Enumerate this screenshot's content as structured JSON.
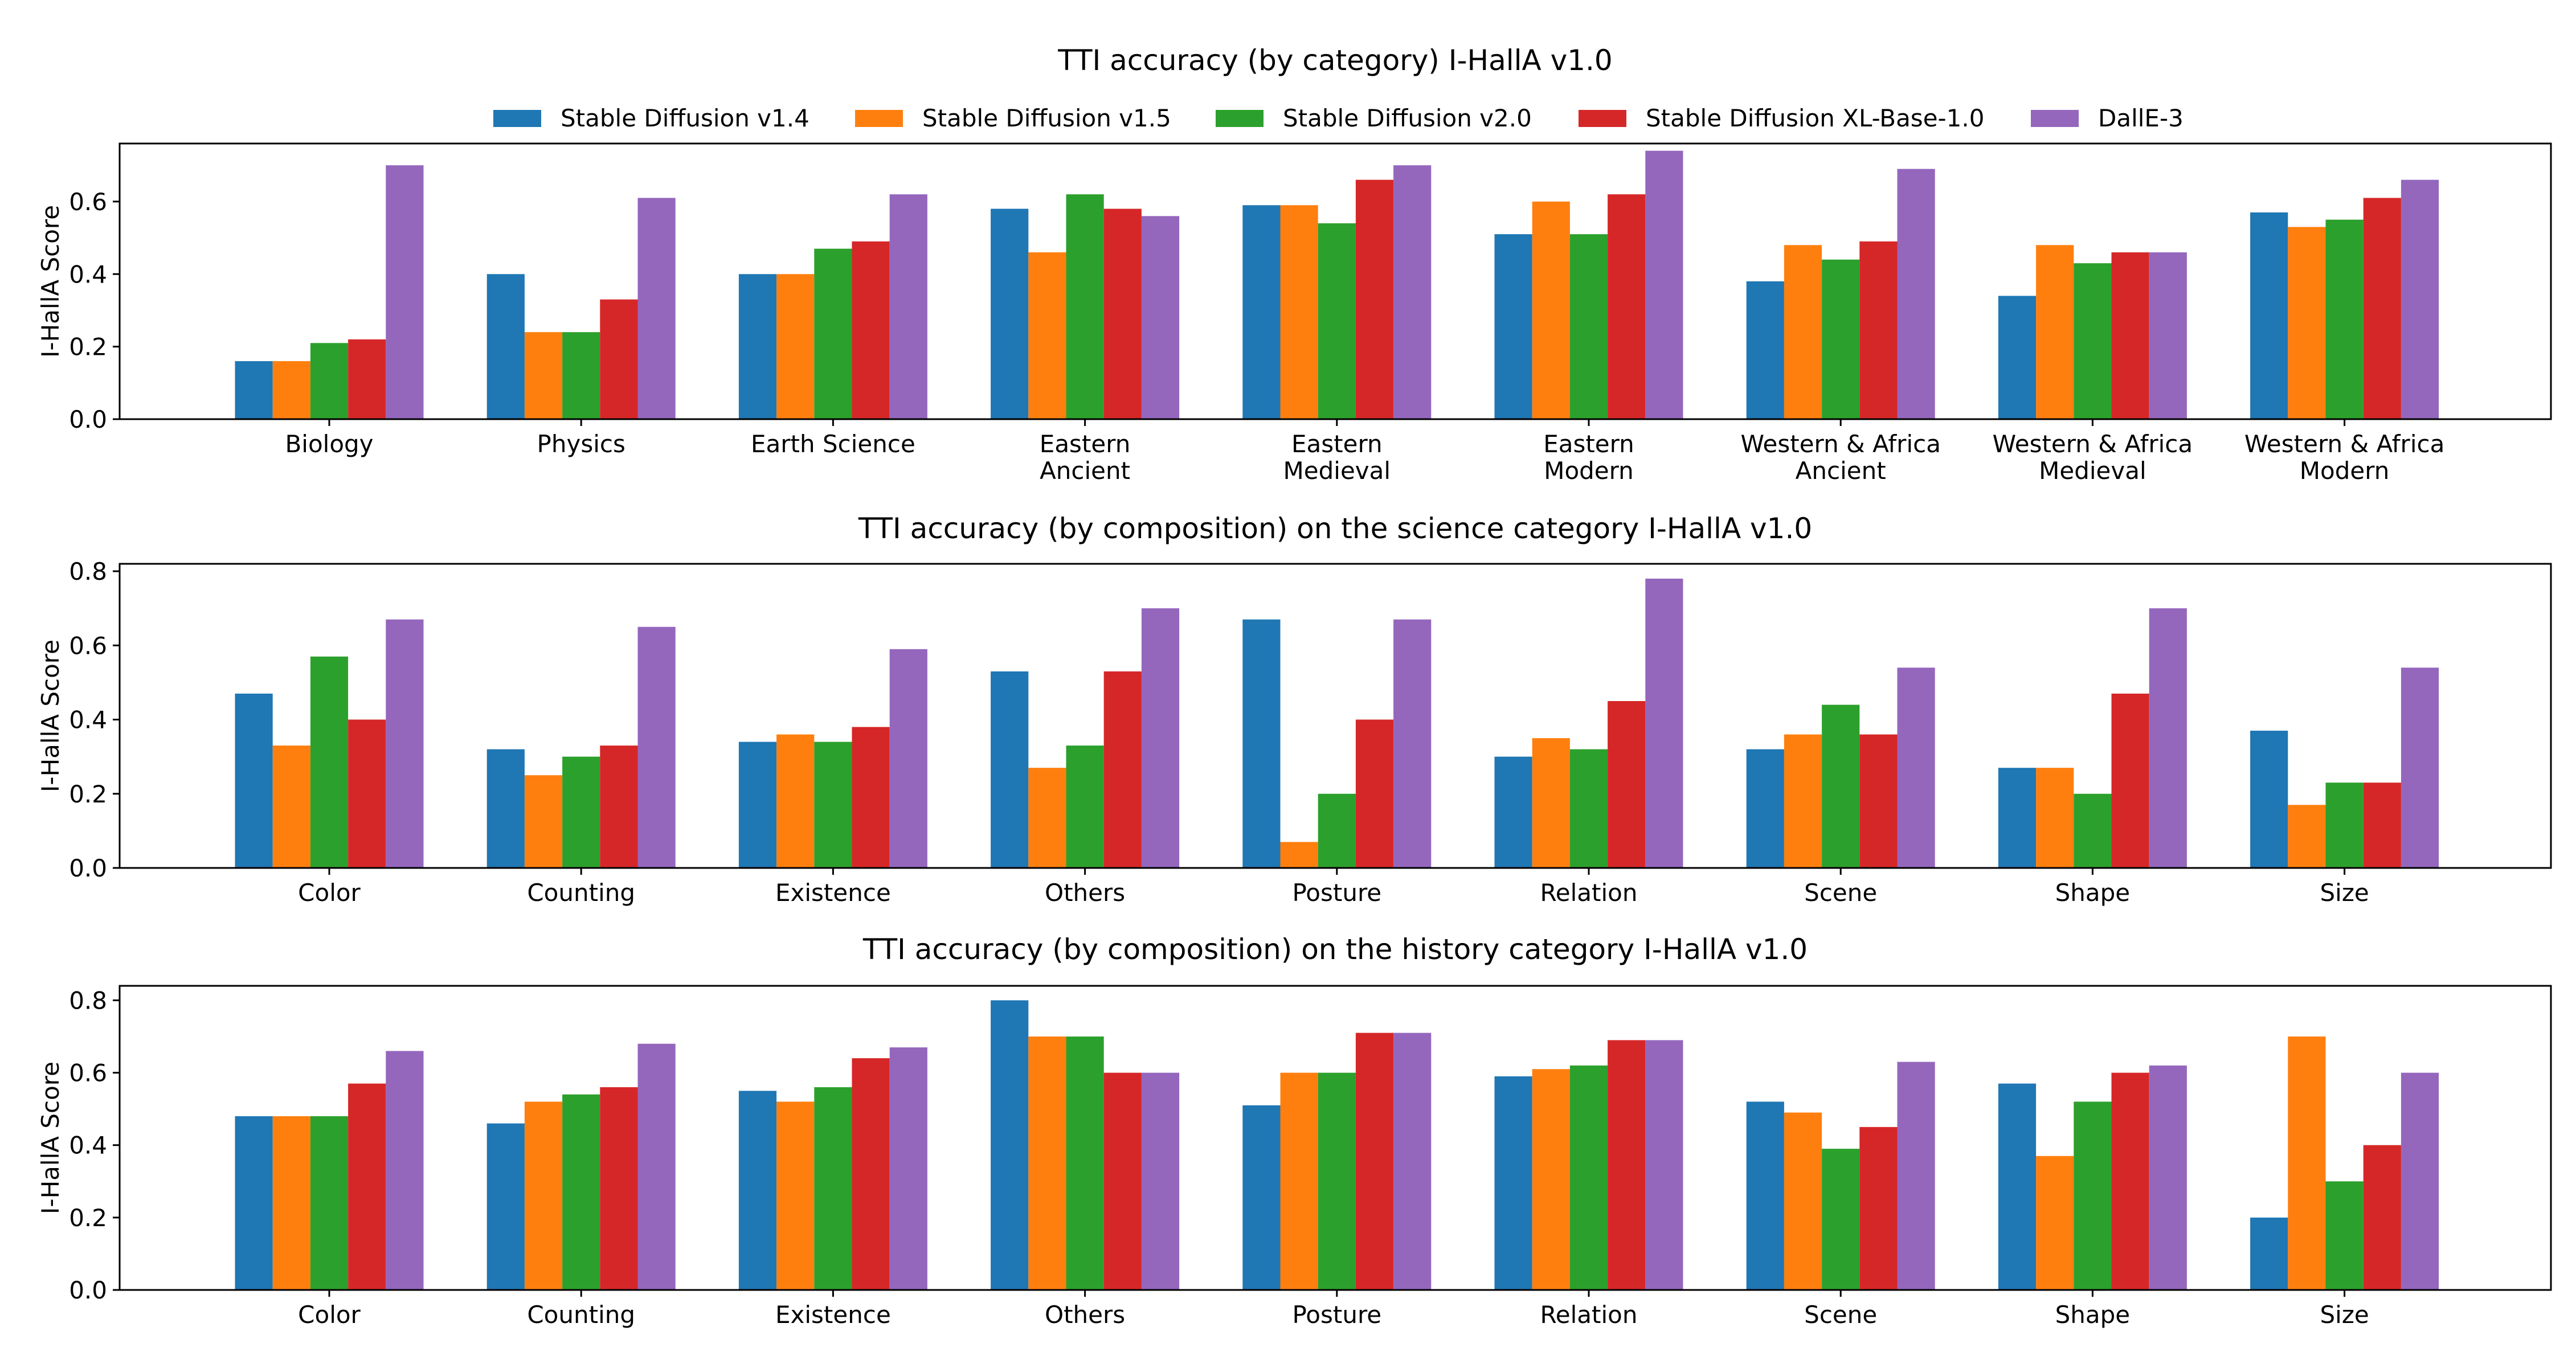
{
  "legend": {
    "items": [
      {
        "label": "Stable Diffusion v1.4",
        "color": "#1f77b4"
      },
      {
        "label": "Stable Diffusion v1.5",
        "color": "#ff7f0e"
      },
      {
        "label": "Stable Diffusion v2.0",
        "color": "#2ca02c"
      },
      {
        "label": "Stable Diffusion XL-Base-1.0",
        "color": "#d62728"
      },
      {
        "label": "DallE-3",
        "color": "#9467bd"
      }
    ]
  },
  "chart_data": [
    {
      "type": "bar",
      "title": "TTI accuracy (by category) I-HallA v1.0",
      "xlabel": "",
      "ylabel": "I-HallA Score",
      "ylim": [
        0,
        0.76
      ],
      "yticks": [
        "0.0",
        "0.2",
        "0.4",
        "0.6"
      ],
      "categories": [
        [
          "Biology"
        ],
        [
          "Physics"
        ],
        [
          "Earth Science"
        ],
        [
          "Eastern",
          "Ancient"
        ],
        [
          "Eastern",
          "Medieval"
        ],
        [
          "Eastern",
          "Modern"
        ],
        [
          "Western & Africa",
          "Ancient"
        ],
        [
          "Western & Africa",
          "Medieval"
        ],
        [
          "Western & Africa",
          "Modern"
        ]
      ],
      "series": [
        {
          "name": "Stable Diffusion v1.4",
          "values": [
            0.16,
            0.4,
            0.4,
            0.58,
            0.59,
            0.51,
            0.38,
            0.34,
            0.57
          ]
        },
        {
          "name": "Stable Diffusion v1.5",
          "values": [
            0.16,
            0.24,
            0.4,
            0.46,
            0.59,
            0.6,
            0.48,
            0.48,
            0.53
          ]
        },
        {
          "name": "Stable Diffusion v2.0",
          "values": [
            0.21,
            0.24,
            0.47,
            0.62,
            0.54,
            0.51,
            0.44,
            0.43,
            0.55
          ]
        },
        {
          "name": "Stable Diffusion XL-Base-1.0",
          "values": [
            0.22,
            0.33,
            0.49,
            0.58,
            0.66,
            0.62,
            0.49,
            0.46,
            0.61
          ]
        },
        {
          "name": "DallE-3",
          "values": [
            0.7,
            0.61,
            0.62,
            0.56,
            0.7,
            0.74,
            0.69,
            0.46,
            0.66
          ]
        }
      ]
    },
    {
      "type": "bar",
      "title": "TTI accuracy (by composition) on the science category I-HallA v1.0",
      "xlabel": "",
      "ylabel": "I-HallA Score",
      "ylim": [
        0,
        0.82
      ],
      "yticks": [
        "0.0",
        "0.2",
        "0.4",
        "0.6",
        "0.8"
      ],
      "categories": [
        [
          "Color"
        ],
        [
          "Counting"
        ],
        [
          "Existence"
        ],
        [
          "Others"
        ],
        [
          "Posture"
        ],
        [
          "Relation"
        ],
        [
          "Scene"
        ],
        [
          "Shape"
        ],
        [
          "Size"
        ]
      ],
      "series": [
        {
          "name": "Stable Diffusion v1.4",
          "values": [
            0.47,
            0.32,
            0.34,
            0.53,
            0.67,
            0.3,
            0.32,
            0.27,
            0.37
          ]
        },
        {
          "name": "Stable Diffusion v1.5",
          "values": [
            0.33,
            0.25,
            0.36,
            0.27,
            0.07,
            0.35,
            0.36,
            0.27,
            0.17
          ]
        },
        {
          "name": "Stable Diffusion v2.0",
          "values": [
            0.57,
            0.3,
            0.34,
            0.33,
            0.2,
            0.32,
            0.44,
            0.2,
            0.23
          ]
        },
        {
          "name": "Stable Diffusion XL-Base-1.0",
          "values": [
            0.4,
            0.33,
            0.38,
            0.53,
            0.4,
            0.45,
            0.36,
            0.47,
            0.23
          ]
        },
        {
          "name": "DallE-3",
          "values": [
            0.67,
            0.65,
            0.59,
            0.7,
            0.67,
            0.78,
            0.54,
            0.7,
            0.54
          ]
        }
      ]
    },
    {
      "type": "bar",
      "title": "TTI accuracy (by composition) on the history category I-HallA v1.0",
      "xlabel": "",
      "ylabel": "I-HallA Score",
      "ylim": [
        0,
        0.84
      ],
      "yticks": [
        "0.0",
        "0.2",
        "0.4",
        "0.6",
        "0.8"
      ],
      "categories": [
        [
          "Color"
        ],
        [
          "Counting"
        ],
        [
          "Existence"
        ],
        [
          "Others"
        ],
        [
          "Posture"
        ],
        [
          "Relation"
        ],
        [
          "Scene"
        ],
        [
          "Shape"
        ],
        [
          "Size"
        ]
      ],
      "series": [
        {
          "name": "Stable Diffusion v1.4",
          "values": [
            0.48,
            0.46,
            0.55,
            0.8,
            0.51,
            0.59,
            0.52,
            0.57,
            0.2
          ]
        },
        {
          "name": "Stable Diffusion v1.5",
          "values": [
            0.48,
            0.52,
            0.52,
            0.7,
            0.6,
            0.61,
            0.49,
            0.37,
            0.7
          ]
        },
        {
          "name": "Stable Diffusion v2.0",
          "values": [
            0.48,
            0.54,
            0.56,
            0.7,
            0.6,
            0.62,
            0.39,
            0.52,
            0.3
          ]
        },
        {
          "name": "Stable Diffusion XL-Base-1.0",
          "values": [
            0.57,
            0.56,
            0.64,
            0.6,
            0.71,
            0.69,
            0.45,
            0.6,
            0.4
          ]
        },
        {
          "name": "DallE-3",
          "values": [
            0.66,
            0.68,
            0.67,
            0.6,
            0.71,
            0.69,
            0.63,
            0.62,
            0.6
          ]
        }
      ]
    }
  ]
}
